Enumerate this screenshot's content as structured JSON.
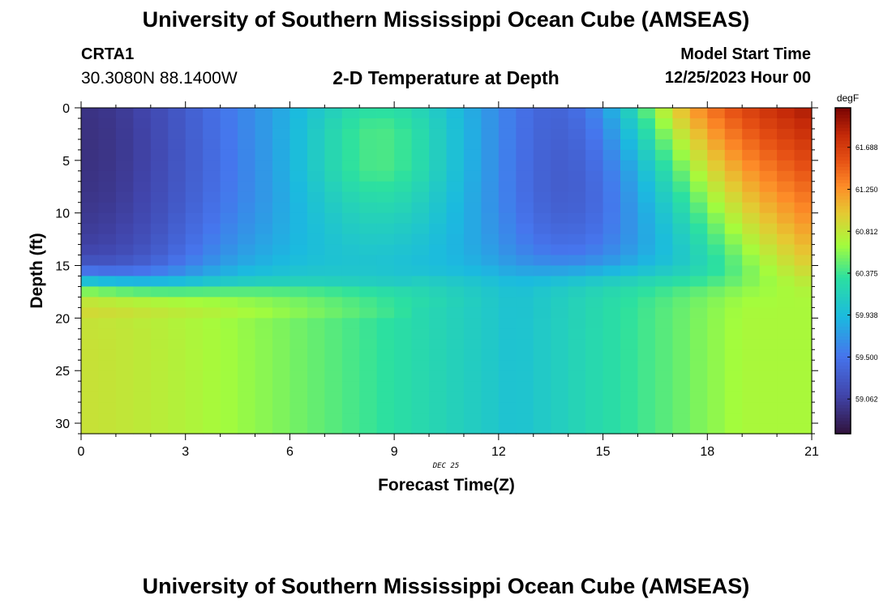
{
  "header": {
    "title": "University of Southern Mississippi Ocean Cube (AMSEAS)",
    "station": "CRTA1",
    "coords": "30.3080N  88.1400W",
    "plot_title": "2-D Temperature at Depth",
    "model_start_label": "Model Start Time",
    "model_start_value": "12/25/2023 Hour 00"
  },
  "footer": {
    "title": "University of Southern Mississippi Ocean Cube (AMSEAS)"
  },
  "chart_data": {
    "type": "heatmap",
    "title": "2-D Temperature at Depth",
    "xlabel": "Forecast Time(Z)",
    "ylabel": "Depth (ft)",
    "date_label": "DEC 25",
    "x_ticks": [
      0,
      3,
      6,
      9,
      12,
      15,
      18,
      21
    ],
    "y_ticks": [
      0,
      5,
      10,
      15,
      20,
      25,
      30
    ],
    "xlim": [
      0,
      21
    ],
    "ylim": [
      0,
      31
    ],
    "colorbar": {
      "unit": "degF",
      "ticks": [
        "59.062",
        "59.500",
        "59.938",
        "60.375",
        "60.812",
        "61.250",
        "61.688"
      ],
      "range": [
        58.7,
        62.1
      ]
    },
    "cols": 42,
    "rows": 31,
    "data_note": "Temperature (degF) sampled on a 42 x 31 grid (every 0.5 h, every 1 ft), approximated from the figure",
    "shape": {
      "cold_core_1": {
        "center_hour": 0,
        "center_depth_ft": 3,
        "min_degF": 58.95
      },
      "cold_core_2": {
        "center_hour": 14,
        "center_depth_ft": 6,
        "min_degF": 59.3
      },
      "mixed_upper": {
        "center_hour": 8.5,
        "depth_ft": 7,
        "degF": 59.9
      },
      "warm_surface_late": {
        "hour": 21,
        "depth_ft": 0,
        "degF": 61.95
      },
      "deep_layer_early": {
        "hour": 2,
        "depth_ft": 22,
        "degF": 60.85
      },
      "deep_layer_mid": {
        "hour": 12.5,
        "depth_ft": 25,
        "degF": 60.0
      },
      "deep_layer_late": {
        "hour": 21,
        "depth_ft": 25,
        "degF": 60.7
      }
    }
  }
}
